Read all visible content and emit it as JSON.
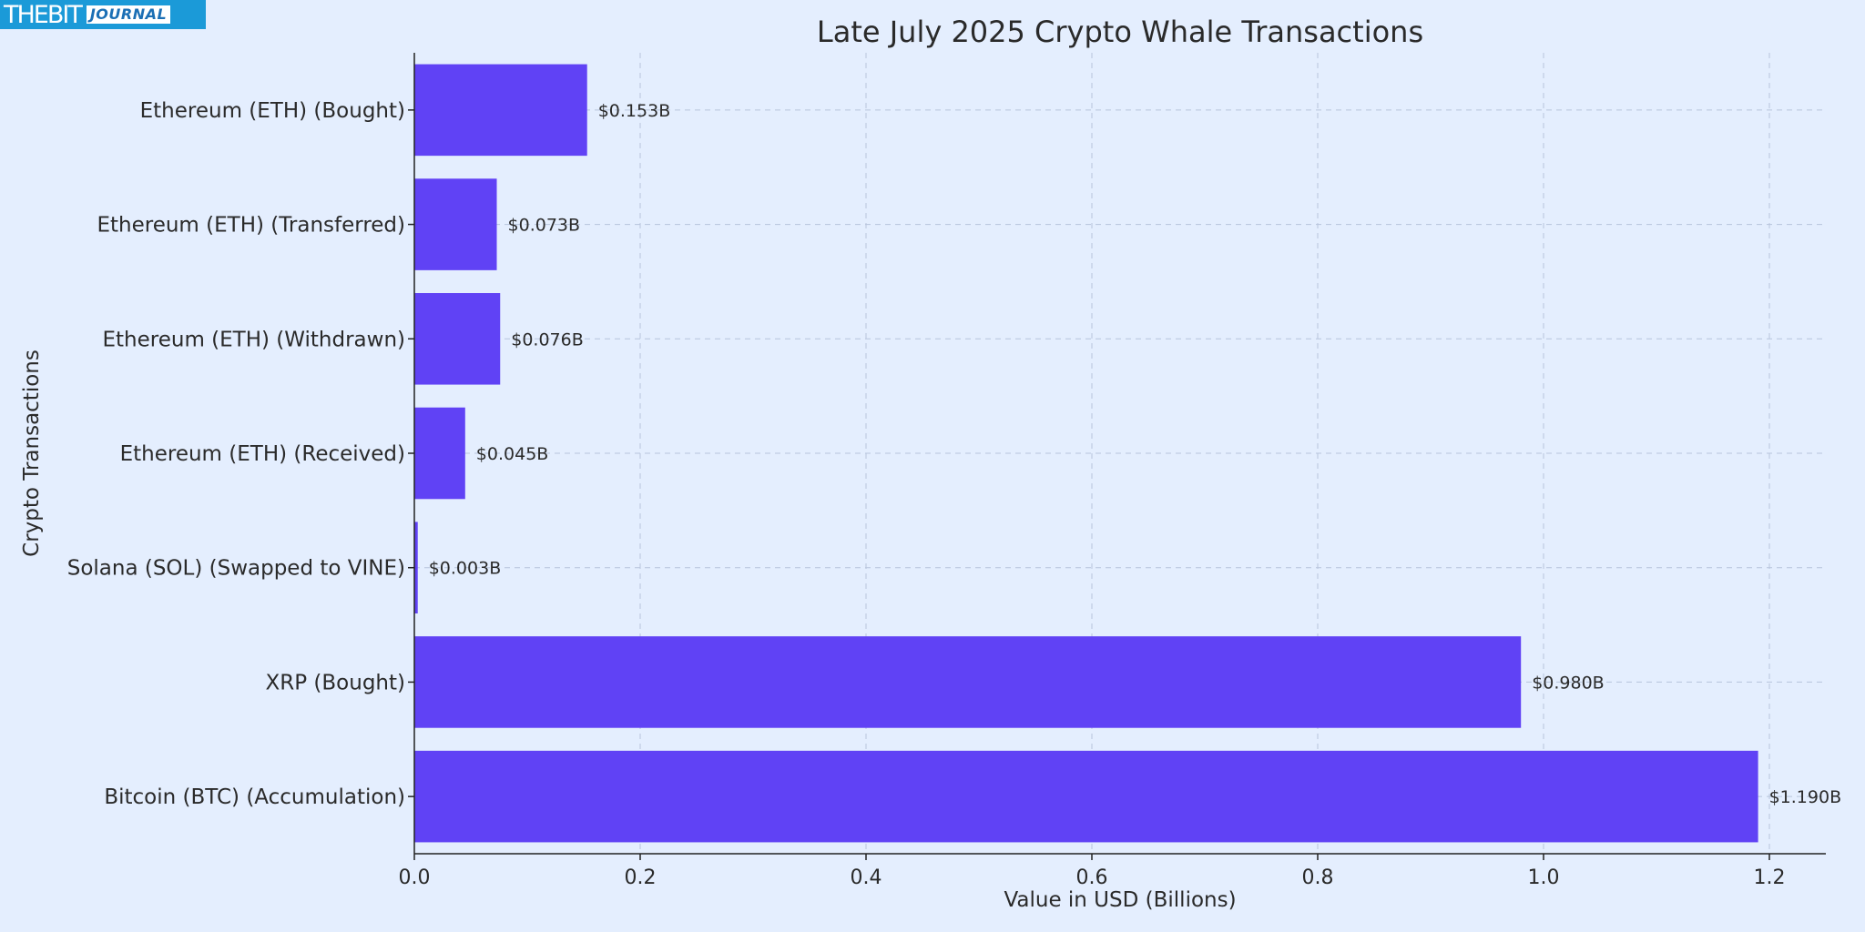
{
  "logo": {
    "text_main": "THEBIT",
    "text_sub": "JOURNAL"
  },
  "chart_data": {
    "type": "bar",
    "orientation": "horizontal",
    "title": "Late July 2025 Crypto Whale Transactions",
    "xlabel": "Value in USD (Billions)",
    "ylabel": "Crypto Transactions",
    "categories": [
      "Bitcoin (BTC) (Accumulation)",
      "XRP (Bought)",
      "Solana (SOL) (Swapped to VINE)",
      "Ethereum (ETH) (Received)",
      "Ethereum (ETH) (Withdrawn)",
      "Ethereum (ETH) (Transferred)",
      "Ethereum (ETH) (Bought)"
    ],
    "values": [
      1.19,
      0.98,
      0.003,
      0.045,
      0.076,
      0.073,
      0.153
    ],
    "data_labels": [
      "$1.190B",
      "$0.980B",
      "$0.003B",
      "$0.045B",
      "$0.076B",
      "$0.073B",
      "$0.153B"
    ],
    "xticks": [
      "0.0",
      "0.2",
      "0.4",
      "0.6",
      "0.8",
      "1.0",
      "1.2"
    ],
    "xlim": [
      0,
      1.25
    ],
    "grid": true,
    "bar_color": "#6042f5"
  }
}
